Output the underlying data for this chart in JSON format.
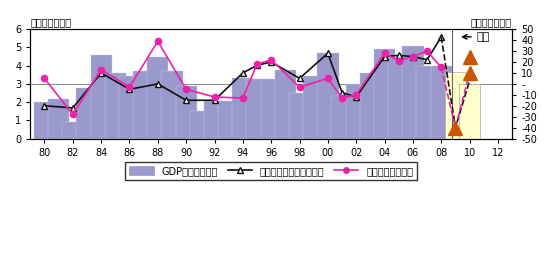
{
  "gdp_data": {
    "years": [
      1980,
      1981,
      1982,
      1983,
      1984,
      1985,
      1986,
      1987,
      1988,
      1989,
      1990,
      1991,
      1992,
      1993,
      1994,
      1995,
      1996,
      1997,
      1998,
      1999,
      2000,
      2001,
      2002,
      2003,
      2004,
      2005,
      2006,
      2007,
      2008
    ],
    "values": [
      2.0,
      2.15,
      0.9,
      2.8,
      4.6,
      3.6,
      3.45,
      3.7,
      4.45,
      3.7,
      2.9,
      1.5,
      2.05,
      2.05,
      3.3,
      3.25,
      3.25,
      3.75,
      2.5,
      3.45,
      4.7,
      2.35,
      3.0,
      3.6,
      4.9,
      4.4,
      5.1,
      4.0,
      4.0
    ]
  },
  "gdp_forecast": {
    "years": [
      2009,
      2010
    ],
    "values": [
      3.65,
      3.0
    ]
  },
  "commodity_data": {
    "years": [
      1980,
      1982,
      1984,
      1986,
      1988,
      1990,
      1992,
      1994,
      1995,
      1996,
      1998,
      2000,
      2001,
      2002,
      2004,
      2005,
      2006,
      2007,
      2008
    ],
    "values": [
      -20,
      -22,
      10,
      -5,
      0,
      -15,
      -15,
      10,
      17,
      20,
      5,
      28,
      -8,
      -12,
      25,
      26,
      25,
      22,
      43
    ]
  },
  "commodity_forecast": {
    "years": [
      2008,
      2009,
      2010
    ],
    "values": [
      43,
      -40,
      3
    ]
  },
  "metal_data": {
    "years": [
      1980,
      1982,
      1984,
      1986,
      1988,
      1990,
      1992,
      1994,
      1995,
      1996,
      1998,
      2000,
      2001,
      2002,
      2004,
      2005,
      2006,
      2007,
      2008
    ],
    "values": [
      5,
      -28,
      13,
      -3,
      39,
      -5,
      -12,
      -13,
      18,
      22,
      -3,
      5,
      -13,
      -10,
      28,
      21,
      25,
      30,
      15
    ]
  },
  "metal_forecast": {
    "years": [
      2008,
      2009,
      2010
    ],
    "values": [
      15,
      -40,
      10
    ]
  },
  "triangle_forecasts": [
    {
      "year": 2009,
      "value": -40
    },
    {
      "year": 2010,
      "value": 10
    },
    {
      "year": 2010,
      "value": 25
    }
  ],
  "bar_color": "#9999cc",
  "bar_forecast_color": "#ffffcc",
  "commodity_color": "#111111",
  "metal_color": "#ee22aa",
  "triangle_color": "#cc5500",
  "ref_line_color": "#888888",
  "bg_color": "#ffffff",
  "ylim_left": [
    0,
    6
  ],
  "ylim_right": [
    -50,
    50
  ],
  "yticks_left": [
    0,
    1,
    2,
    3,
    4,
    5,
    6
  ],
  "yticks_right": [
    -50,
    -40,
    -30,
    -20,
    -10,
    0,
    10,
    20,
    30,
    40,
    50
  ],
  "xtick_years": [
    1980,
    1982,
    1984,
    1986,
    1988,
    1990,
    1992,
    1994,
    1996,
    1998,
    2000,
    2002,
    2004,
    2006,
    2008,
    2010,
    2012
  ],
  "xtick_labels": [
    "80",
    "82",
    "84",
    "86",
    "88",
    "90",
    "92",
    "94",
    "96",
    "98",
    "00",
    "02",
    "04",
    "06",
    "08",
    "10",
    "12"
  ],
  "title_left": "（前年比、％）",
  "title_right": "（前年比、％）",
  "yosoku_text": "予測",
  "legend_gdp": "GDP成長率（左）",
  "legend_commodity": "コモディティ指数（右）",
  "legend_metal": "メタル指数（右）",
  "xmin": 1979,
  "xmax": 2013
}
